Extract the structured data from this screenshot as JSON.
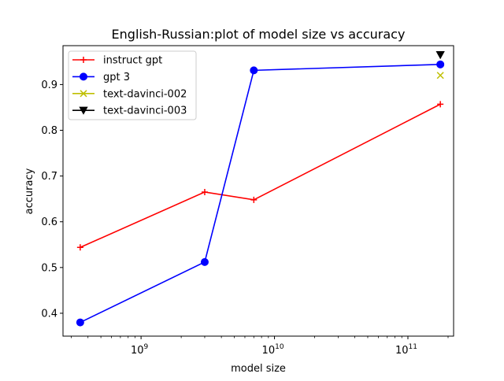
{
  "chart_data": {
    "type": "line",
    "title": "English-Russian:plot of model size vs accuracy",
    "xlabel": "model size",
    "ylabel": "accuracy",
    "xscale": "log",
    "xlim": [
      260000000,
      220000000000
    ],
    "ylim": [
      0.35,
      0.985
    ],
    "xticks": [
      {
        "value": 1000000000,
        "base": "10",
        "exp": "9"
      },
      {
        "value": 10000000000,
        "base": "10",
        "exp": "10"
      },
      {
        "value": 100000000000,
        "base": "10",
        "exp": "11"
      }
    ],
    "yticks": [
      {
        "value": 0.4,
        "label": "0.4"
      },
      {
        "value": 0.5,
        "label": "0.5"
      },
      {
        "value": 0.6,
        "label": "0.6"
      },
      {
        "value": 0.7,
        "label": "0.7"
      },
      {
        "value": 0.8,
        "label": "0.8"
      },
      {
        "value": 0.9,
        "label": "0.9"
      }
    ],
    "grid": false,
    "legend_position": "top-left",
    "series": [
      {
        "name": "instruct gpt",
        "color": "#ff0000",
        "marker": "plus",
        "line": true,
        "points": [
          {
            "x": 350000000,
            "y": 0.544
          },
          {
            "x": 3000000000,
            "y": 0.665
          },
          {
            "x": 7000000000,
            "y": 0.648
          },
          {
            "x": 175000000000,
            "y": 0.857
          }
        ]
      },
      {
        "name": "gpt 3",
        "color": "#0000ff",
        "marker": "circle",
        "line": true,
        "points": [
          {
            "x": 350000000,
            "y": 0.38
          },
          {
            "x": 3000000000,
            "y": 0.512
          },
          {
            "x": 7000000000,
            "y": 0.931
          },
          {
            "x": 175000000000,
            "y": 0.944
          }
        ]
      },
      {
        "name": "text-davinci-002",
        "color": "#bfbf00",
        "marker": "x",
        "line": true,
        "points": [
          {
            "x": 175000000000,
            "y": 0.92
          }
        ]
      },
      {
        "name": "text-davinci-003",
        "color": "#000000",
        "marker": "triangle-down",
        "line": true,
        "points": [
          {
            "x": 175000000000,
            "y": 0.965
          }
        ]
      }
    ]
  }
}
